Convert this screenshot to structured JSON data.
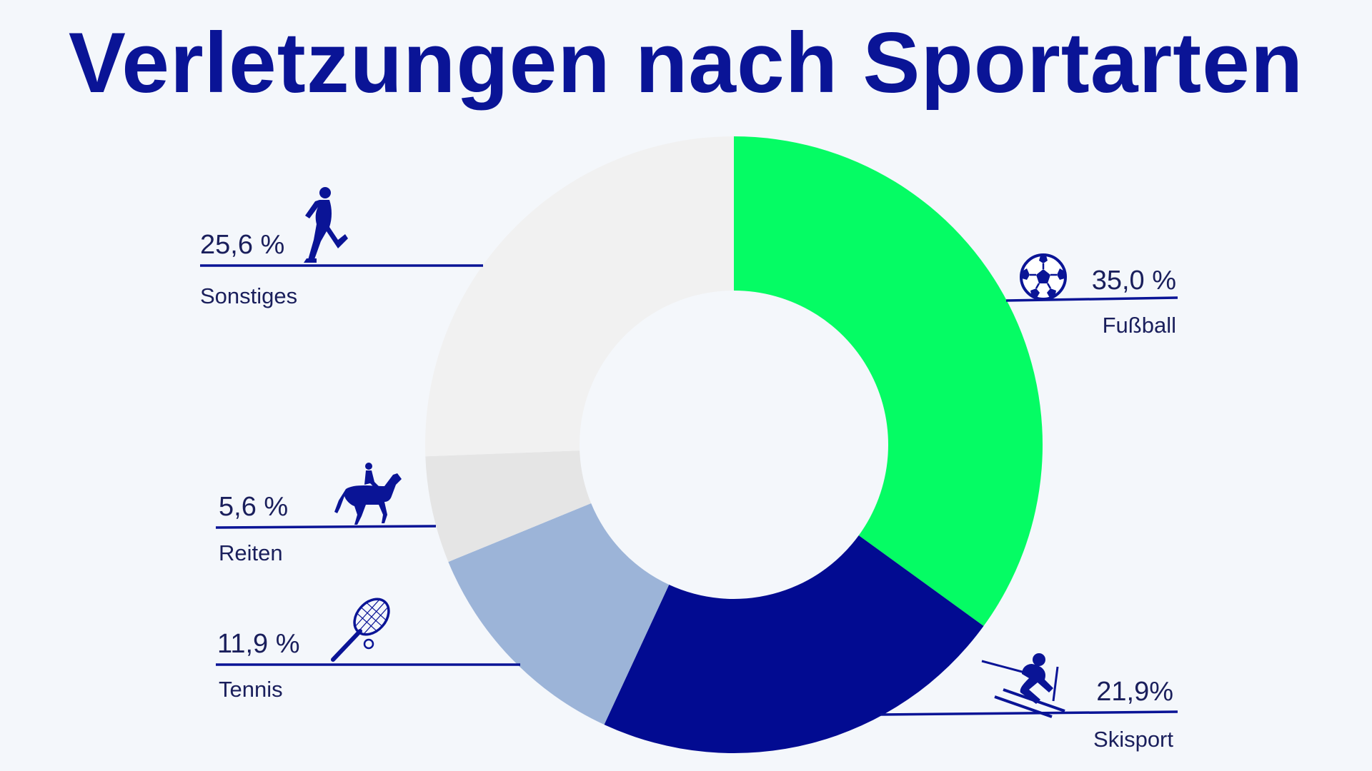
{
  "title": "Verletzungen nach Sportarten",
  "colors": {
    "title": "#0a1496",
    "text": "#1a1f5c",
    "background": "#f4f7fb"
  },
  "chart_data": {
    "type": "pie",
    "variant": "donut",
    "title": "Verletzungen nach Sportarten",
    "slices": [
      {
        "label": "Fußball",
        "value": 35.0,
        "value_label": "35,0 %",
        "color": "#05fc64",
        "icon": "soccer-ball-icon"
      },
      {
        "label": "Skisport",
        "value": 21.9,
        "value_label": "21,9%",
        "color": "#020b91",
        "icon": "skier-icon"
      },
      {
        "label": "Tennis",
        "value": 11.9,
        "value_label": "11,9 %",
        "color": "#9cb4d8",
        "icon": "tennis-racket-icon"
      },
      {
        "label": "Reiten",
        "value": 5.6,
        "value_label": "5,6 %",
        "color": "#e5e5e5",
        "icon": "horse-rider-icon"
      },
      {
        "label": "Sonstiges",
        "value": 25.6,
        "value_label": "25,6 %",
        "color": "#f1f1f1",
        "icon": "runner-icon"
      }
    ],
    "start": "12 o'clock",
    "direction": "clockwise",
    "legend": "none (direct labels)"
  }
}
